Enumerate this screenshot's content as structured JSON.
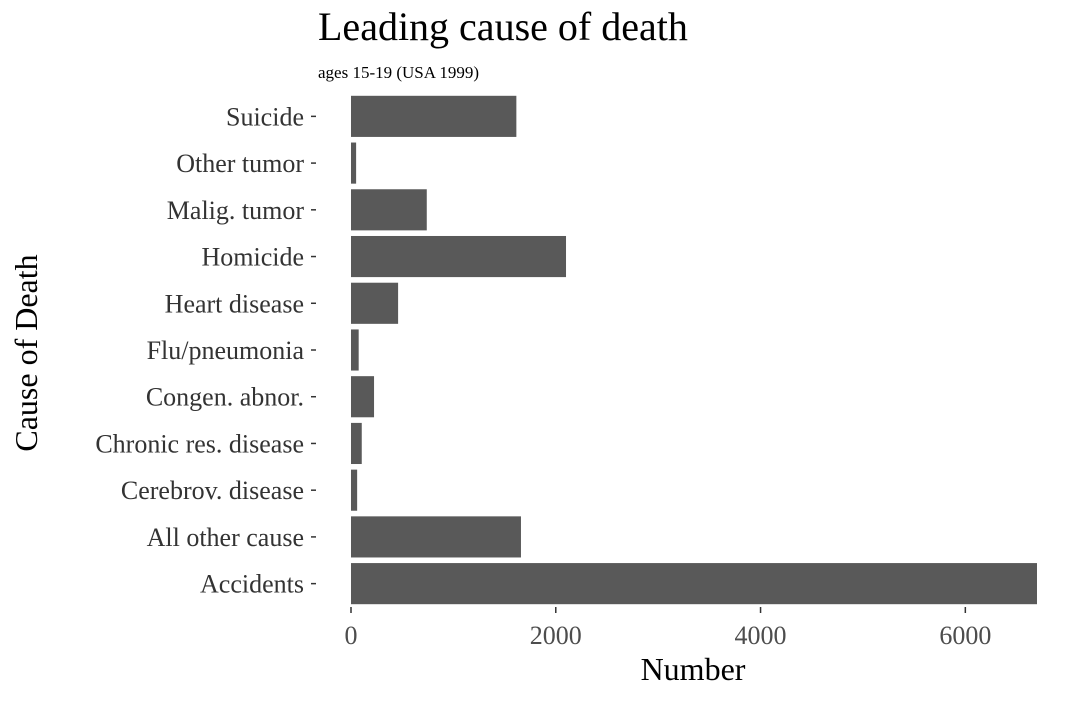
{
  "chart_data": {
    "type": "bar",
    "orientation": "horizontal",
    "title": "Leading cause of death",
    "subtitle": "ages 15-19 (USA 1999)",
    "xlabel": "Number",
    "ylabel": "Cause of Death",
    "categories": [
      "Suicide",
      "Other tumor",
      "Malig. tumor",
      "Homicide",
      "Heart disease",
      "Flu/pneumonia",
      "Congen. abnor.",
      "Chronic res. disease",
      "Cerebrov. disease",
      "All other cause",
      "Accidents"
    ],
    "values": [
      1615,
      50,
      740,
      2100,
      460,
      75,
      225,
      105,
      60,
      1660,
      6700
    ],
    "xlim": [
      0,
      6700
    ],
    "x_ticks": [
      "0",
      "2000",
      "4000",
      "6000"
    ],
    "x_tick_values": [
      0,
      2000,
      4000,
      6000
    ],
    "bar_color": "#595959",
    "grid": false,
    "legend": "none"
  }
}
